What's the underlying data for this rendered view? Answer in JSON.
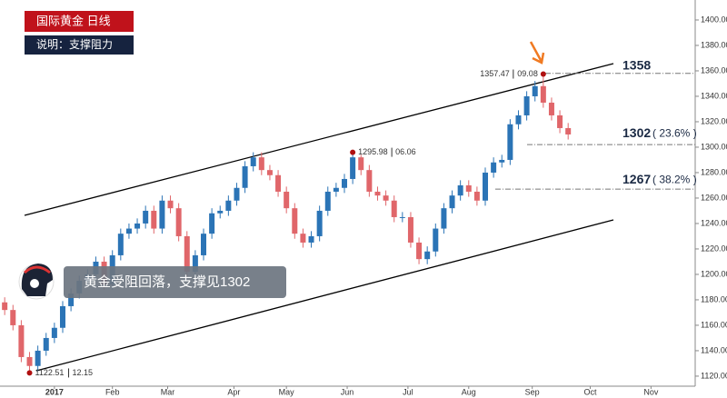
{
  "chart_data": {
    "type": "candlestick",
    "title": "国际黄金  日线",
    "subtitle": "说明：支撑阻力",
    "callout": "黄金受阻回落，支撑见1302",
    "up_color": "#2b74b6",
    "down_color": "#e0666a",
    "xlim": [
      -19.7,
      232
    ],
    "ylim": [
      1112.1,
      1415.7
    ],
    "xticks": [
      {
        "value": 0,
        "label": "2017"
      },
      {
        "value": 21,
        "label": "Feb"
      },
      {
        "value": 41,
        "label": "Mar"
      },
      {
        "value": 65,
        "label": "Apr"
      },
      {
        "value": 84,
        "label": "May"
      },
      {
        "value": 106,
        "label": "Jun"
      },
      {
        "value": 128,
        "label": "Jul"
      },
      {
        "value": 150,
        "label": "Aug"
      },
      {
        "value": 173,
        "label": "Sep"
      },
      {
        "value": 194,
        "label": "Oct"
      },
      {
        "value": 216,
        "label": "Nov"
      }
    ],
    "yticks": [
      {
        "value": 1120,
        "label": "1120.00"
      },
      {
        "value": 1140,
        "label": "1140.00"
      },
      {
        "value": 1160,
        "label": "1160.00"
      },
      {
        "value": 1180,
        "label": "1180.00"
      },
      {
        "value": 1200,
        "label": "1200.00"
      },
      {
        "value": 1220,
        "label": "1220.00"
      },
      {
        "value": 1240,
        "label": "1240.00"
      },
      {
        "value": 1260,
        "label": "1260.00"
      },
      {
        "value": 1280,
        "label": "1280.00"
      },
      {
        "value": 1300,
        "label": "1300.00"
      },
      {
        "value": 1320,
        "label": "1320.00"
      },
      {
        "value": 1340,
        "label": "1340.00"
      },
      {
        "value": 1360,
        "label": "1360.00"
      },
      {
        "value": 1380,
        "label": "1380.00"
      },
      {
        "value": 1400,
        "label": "1400.00"
      }
    ],
    "x": [
      -18,
      -15,
      -12,
      -9,
      -6,
      -3,
      0,
      3,
      6,
      9,
      12,
      15,
      18,
      21,
      24,
      27,
      30,
      33,
      36,
      39,
      42,
      45,
      48,
      51,
      54,
      57,
      60,
      63,
      66,
      69,
      72,
      75,
      78,
      81,
      84,
      87,
      90,
      93,
      96,
      99,
      102,
      105,
      108,
      111,
      114,
      117,
      120,
      123,
      126,
      129,
      132,
      135,
      138,
      141,
      144,
      147,
      150,
      153,
      156,
      159,
      162,
      165,
      168,
      171,
      174,
      177,
      180,
      183,
      186
    ],
    "open": [
      1178,
      1172,
      1160,
      1135,
      1128,
      1140,
      1150,
      1158,
      1175,
      1185,
      1195,
      1200,
      1210,
      1192,
      1215,
      1232,
      1236,
      1240,
      1250,
      1236,
      1258,
      1252,
      1230,
      1202,
      1215,
      1232,
      1248,
      1250,
      1258,
      1268,
      1285,
      1292,
      1282,
      1278,
      1265,
      1252,
      1232,
      1225,
      1230,
      1250,
      1265,
      1268,
      1275,
      1292,
      1282,
      1265,
      1262,
      1258,
      1245,
      1245,
      1225,
      1212,
      1218,
      1236,
      1252,
      1262,
      1270,
      1265,
      1258,
      1280,
      1288,
      1290,
      1318,
      1325,
      1340,
      1348,
      1335,
      1325,
      1315
    ],
    "high": [
      1182,
      1176,
      1164,
      1139,
      1144,
      1154,
      1162,
      1179,
      1189,
      1199,
      1204,
      1214,
      1214,
      1219,
      1236,
      1240,
      1244,
      1254,
      1254,
      1262,
      1262,
      1256,
      1234,
      1219,
      1236,
      1252,
      1254,
      1262,
      1272,
      1289,
      1296,
      1296,
      1286,
      1282,
      1269,
      1256,
      1236,
      1234,
      1254,
      1269,
      1272,
      1279,
      1295.98,
      1294,
      1286,
      1269,
      1266,
      1262,
      1249,
      1249,
      1229,
      1222,
      1240,
      1256,
      1266,
      1274,
      1274,
      1269,
      1284,
      1292,
      1294,
      1322,
      1329,
      1344,
      1352,
      1357.47,
      1339,
      1329,
      1319
    ],
    "low": [
      1168,
      1156,
      1131,
      1122.51,
      1124,
      1136,
      1146,
      1154,
      1171,
      1181,
      1191,
      1196,
      1188,
      1188,
      1211,
      1228,
      1232,
      1236,
      1232,
      1232,
      1248,
      1226,
      1198,
      1198,
      1211,
      1228,
      1244,
      1246,
      1254,
      1264,
      1281,
      1278,
      1274,
      1261,
      1248,
      1228,
      1221,
      1221,
      1226,
      1246,
      1261,
      1264,
      1271,
      1278,
      1261,
      1258,
      1254,
      1241,
      1241,
      1221,
      1208,
      1208,
      1214,
      1232,
      1248,
      1258,
      1261,
      1254,
      1254,
      1276,
      1284,
      1286,
      1314,
      1321,
      1336,
      1331,
      1321,
      1311,
      1306
    ],
    "close": [
      1172,
      1160,
      1135,
      1128,
      1140,
      1150,
      1158,
      1175,
      1185,
      1195,
      1200,
      1210,
      1192,
      1215,
      1232,
      1236,
      1240,
      1250,
      1236,
      1258,
      1252,
      1230,
      1202,
      1215,
      1232,
      1248,
      1250,
      1258,
      1268,
      1285,
      1292,
      1282,
      1278,
      1265,
      1252,
      1232,
      1225,
      1230,
      1250,
      1265,
      1268,
      1275,
      1292,
      1282,
      1265,
      1262,
      1258,
      1245,
      1245,
      1225,
      1212,
      1218,
      1236,
      1252,
      1262,
      1270,
      1265,
      1258,
      1280,
      1288,
      1290,
      1318,
      1325,
      1340,
      1348,
      1335,
      1325,
      1315,
      1310
    ],
    "annotations": [
      {
        "value": 1357.47,
        "date": "09.08"
      },
      {
        "value": 1295.98,
        "date": "06.06"
      },
      {
        "value": 1122.51,
        "date": "12.15"
      }
    ],
    "levels": [
      {
        "value": 1358
      },
      {
        "value": 1302,
        "retracement": "( 23.6% )"
      },
      {
        "value": 1267,
        "retracement": "( 38.2% )"
      }
    ]
  }
}
